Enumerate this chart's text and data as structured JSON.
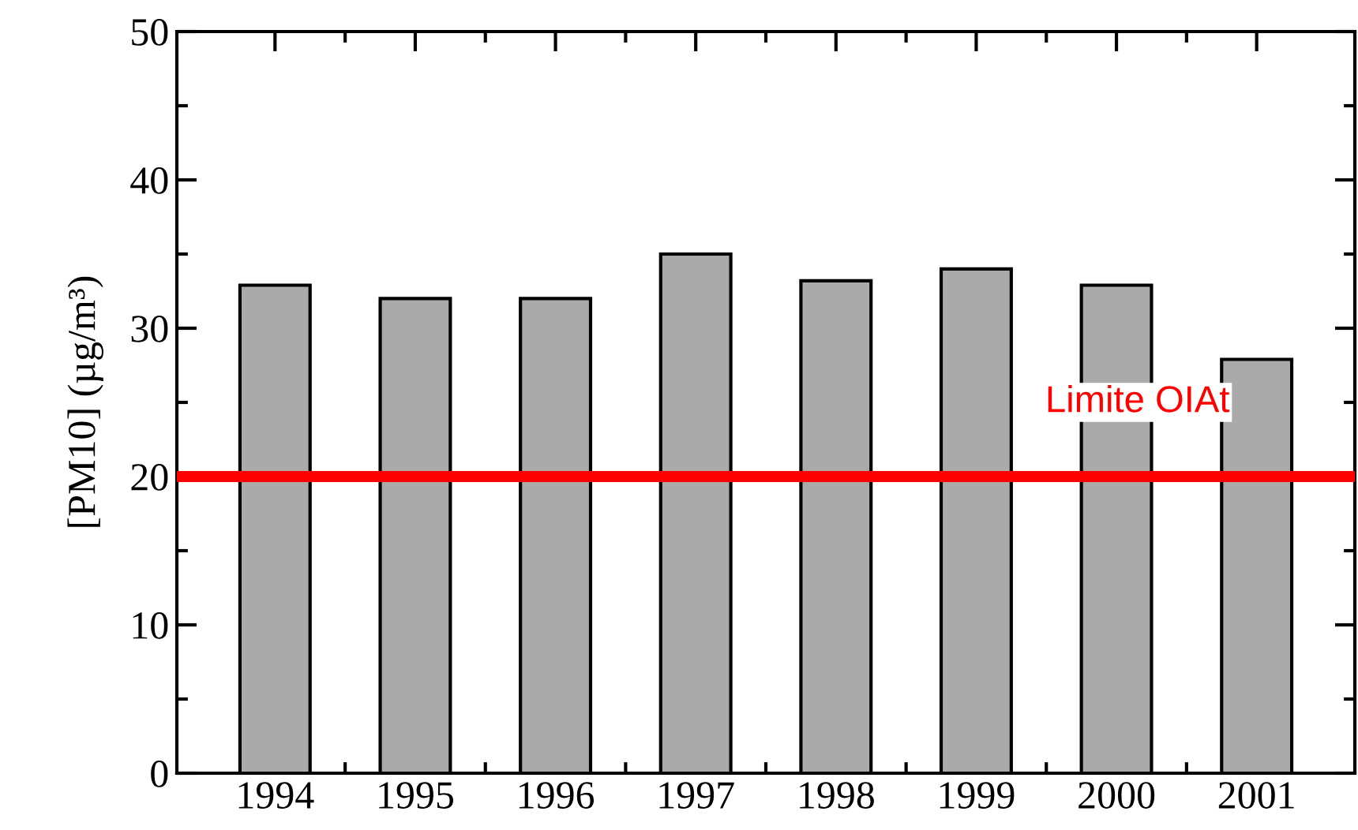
{
  "chart_data": {
    "type": "bar",
    "ylabel": "[PM10] (µg/m³)",
    "categories": [
      "1994",
      "1995",
      "1996",
      "1997",
      "1998",
      "1999",
      "2000",
      "2001"
    ],
    "values": [
      32.9,
      32,
      32,
      35,
      33.2,
      34,
      32.9,
      27.9
    ],
    "color": "#aaaaaa",
    "ylim": [
      0,
      50
    ],
    "yticks": [
      0,
      {
        "value": 5,
        "label": null
      },
      10,
      {
        "value": 15,
        "label": null
      },
      20,
      {
        "value": 25,
        "label": null
      },
      30,
      {
        "value": 35,
        "label": null
      },
      40,
      {
        "value": 45,
        "label": null
      },
      50
    ],
    "ref_lines": [
      {
        "axis": "y",
        "value": 20,
        "label": "Limite OIAt",
        "color": "#ff0000"
      }
    ],
    "grid": false,
    "legend": false
  }
}
